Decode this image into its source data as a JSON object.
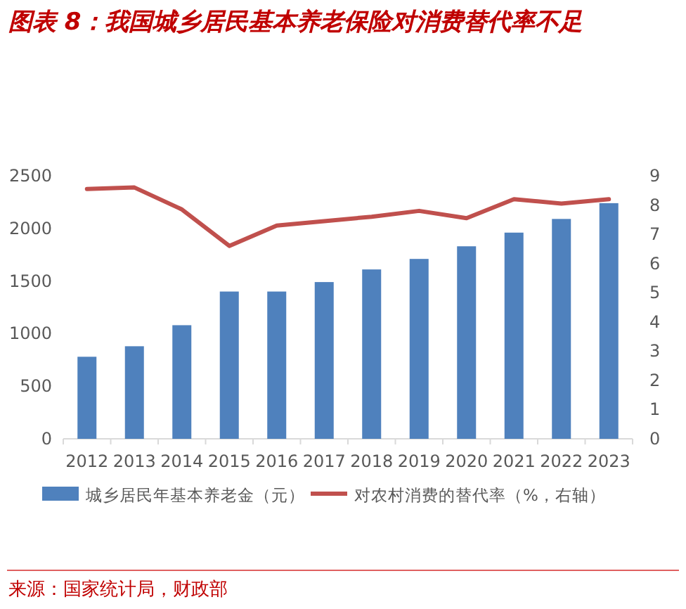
{
  "chart_data": {
    "type": "bar",
    "title": "图表 8：我国城乡居民基本养老保险对消费替代率不足",
    "categories": [
      "2012",
      "2013",
      "2014",
      "2015",
      "2016",
      "2017",
      "2018",
      "2019",
      "2020",
      "2021",
      "2022",
      "2023"
    ],
    "series": [
      {
        "name": "城乡居民年基本养老金（元）",
        "color": "#4f81bd",
        "values": [
          780,
          880,
          1080,
          1400,
          1400,
          1490,
          1610,
          1710,
          1830,
          1960,
          2090,
          2240
        ]
      },
      {
        "name": "对农村消费的替代率（%，右轴）",
        "type": "line",
        "axis": "y2",
        "color": "#c0504d",
        "values": [
          8.55,
          8.6,
          7.85,
          6.6,
          7.3,
          7.45,
          7.6,
          7.8,
          7.55,
          8.2,
          8.05,
          8.2
        ]
      }
    ],
    "ylim": [
      0,
      2500
    ],
    "yticks": [
      0,
      500,
      1000,
      1500,
      2000,
      2500
    ],
    "y2lim": [
      0,
      9
    ],
    "y2ticks": [
      0,
      1,
      2,
      3,
      4,
      5,
      6,
      7,
      8,
      9
    ],
    "legend": "bottom",
    "grid": false,
    "annotations": [
      "来源：国家统计局，财政部"
    ]
  }
}
